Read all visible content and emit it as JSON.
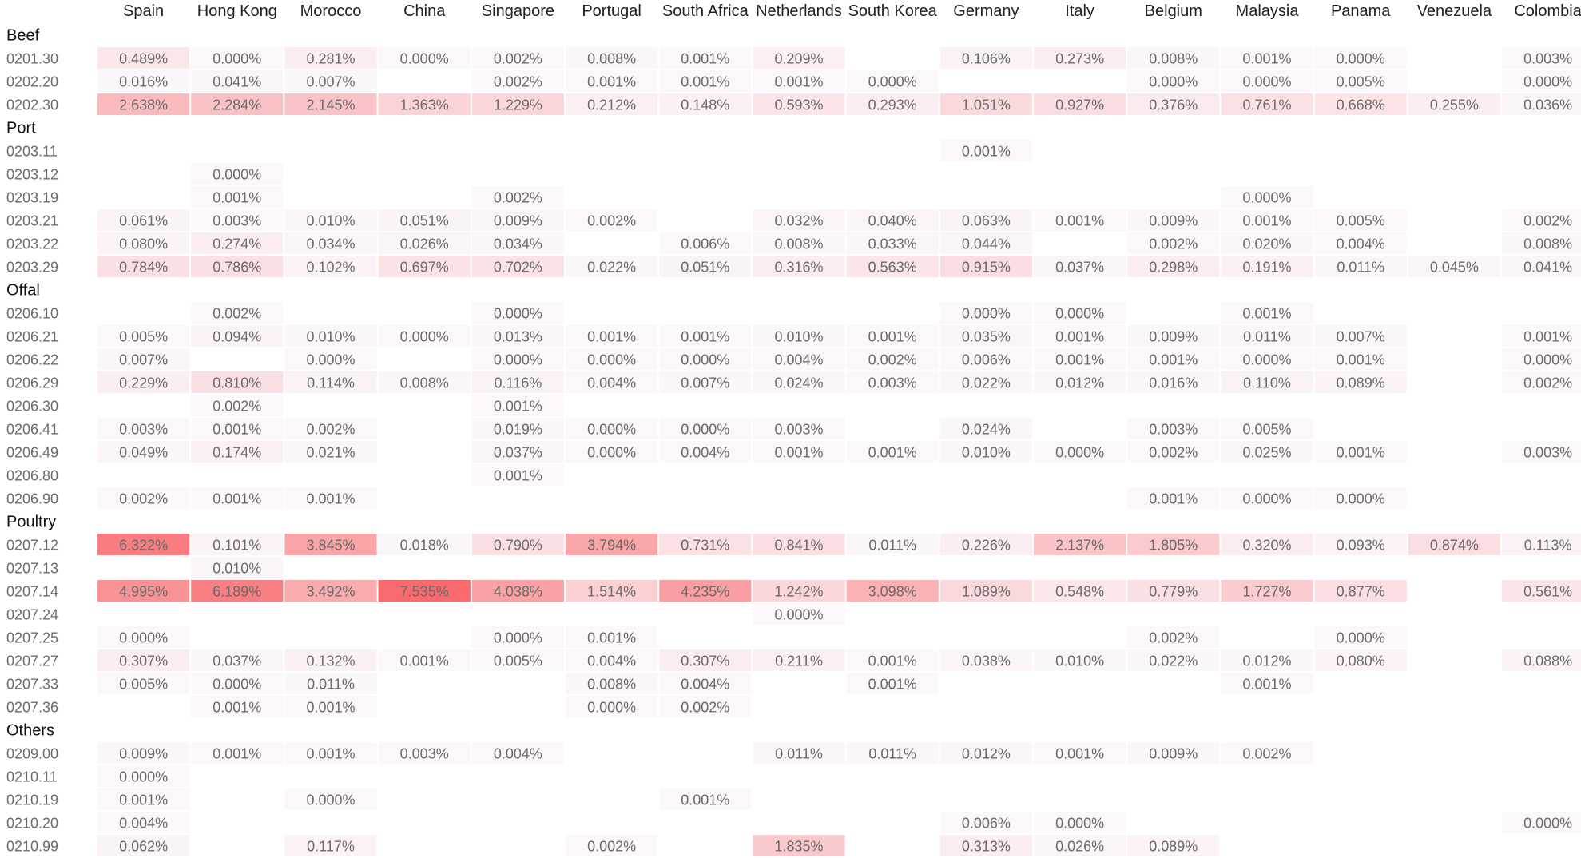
{
  "colors": {
    "low": "#fbf7fa",
    "high": "#f86a6e",
    "empty": "#ffffff",
    "text": "#6b6b6b",
    "header_text": "#222222"
  },
  "chart_data": {
    "type": "heatmap",
    "columns": [
      "Spain",
      "Hong Kong",
      "Morocco",
      "China",
      "Singapore",
      "Portugal",
      "South Africa",
      "Netherlands",
      "South Korea",
      "Germany",
      "Italy",
      "Belgium",
      "Malaysia",
      "Panama",
      "Venezuela",
      "Colombia"
    ],
    "value_format": "percent_3dp",
    "color_range": [
      0,
      7.535
    ],
    "groups": [
      {
        "name": "Beef",
        "rows": [
          {
            "label": "0201.30",
            "values": [
              0.489,
              0.0,
              0.281,
              0.0,
              0.002,
              0.008,
              0.001,
              0.209,
              null,
              0.106,
              0.273,
              0.008,
              0.001,
              0.0,
              null,
              0.003
            ]
          },
          {
            "label": "0202.20",
            "values": [
              0.016,
              0.041,
              0.007,
              null,
              0.002,
              0.001,
              0.001,
              0.001,
              0.0,
              null,
              null,
              0.0,
              0.0,
              0.005,
              null,
              0.0
            ]
          },
          {
            "label": "0202.30",
            "values": [
              2.638,
              2.284,
              2.145,
              1.363,
              1.229,
              0.212,
              0.148,
              0.593,
              0.293,
              1.051,
              0.927,
              0.376,
              0.761,
              0.668,
              0.255,
              0.036
            ]
          }
        ]
      },
      {
        "name": "Port",
        "rows": [
          {
            "label": "0203.11",
            "values": [
              null,
              null,
              null,
              null,
              null,
              null,
              null,
              null,
              null,
              0.001,
              null,
              null,
              null,
              null,
              null,
              null
            ]
          },
          {
            "label": "0203.12",
            "values": [
              null,
              0.0,
              null,
              null,
              null,
              null,
              null,
              null,
              null,
              null,
              null,
              null,
              null,
              null,
              null,
              null
            ]
          },
          {
            "label": "0203.19",
            "values": [
              null,
              0.001,
              null,
              null,
              0.002,
              null,
              null,
              null,
              null,
              null,
              null,
              null,
              0.0,
              null,
              null,
              null
            ]
          },
          {
            "label": "0203.21",
            "values": [
              0.061,
              0.003,
              0.01,
              0.051,
              0.009,
              0.002,
              null,
              0.032,
              0.04,
              0.063,
              0.001,
              0.009,
              0.001,
              0.005,
              null,
              0.002
            ]
          },
          {
            "label": "0203.22",
            "values": [
              0.08,
              0.274,
              0.034,
              0.026,
              0.034,
              null,
              0.006,
              0.008,
              0.033,
              0.044,
              null,
              0.002,
              0.02,
              0.004,
              null,
              0.008
            ]
          },
          {
            "label": "0203.29",
            "values": [
              0.784,
              0.786,
              0.102,
              0.697,
              0.702,
              0.022,
              0.051,
              0.316,
              0.563,
              0.915,
              0.037,
              0.298,
              0.191,
              0.011,
              0.045,
              0.041
            ]
          }
        ]
      },
      {
        "name": "Offal",
        "rows": [
          {
            "label": "0206.10",
            "values": [
              null,
              0.002,
              null,
              null,
              0.0,
              null,
              null,
              null,
              null,
              0.0,
              0.0,
              null,
              0.001,
              null,
              null,
              null
            ]
          },
          {
            "label": "0206.21",
            "values": [
              0.005,
              0.094,
              0.01,
              0.0,
              0.013,
              0.001,
              0.001,
              0.01,
              0.001,
              0.035,
              0.001,
              0.009,
              0.011,
              0.007,
              null,
              0.001
            ]
          },
          {
            "label": "0206.22",
            "values": [
              0.007,
              null,
              0.0,
              null,
              0.0,
              0.0,
              0.0,
              0.004,
              0.002,
              0.006,
              0.001,
              0.001,
              0.0,
              0.001,
              null,
              0.0
            ]
          },
          {
            "label": "0206.29",
            "values": [
              0.229,
              0.81,
              0.114,
              0.008,
              0.116,
              0.004,
              0.007,
              0.024,
              0.003,
              0.022,
              0.012,
              0.016,
              0.11,
              0.089,
              null,
              0.002
            ]
          },
          {
            "label": "0206.30",
            "values": [
              null,
              0.002,
              null,
              null,
              0.001,
              null,
              null,
              null,
              null,
              null,
              null,
              null,
              null,
              null,
              null,
              null
            ]
          },
          {
            "label": "0206.41",
            "values": [
              0.003,
              0.001,
              0.002,
              null,
              0.019,
              0.0,
              0.0,
              0.003,
              null,
              0.024,
              null,
              0.003,
              0.005,
              null,
              null,
              null
            ]
          },
          {
            "label": "0206.49",
            "values": [
              0.049,
              0.174,
              0.021,
              null,
              0.037,
              0.0,
              0.004,
              0.001,
              0.001,
              0.01,
              0.0,
              0.002,
              0.025,
              0.001,
              null,
              0.003
            ]
          },
          {
            "label": "0206.80",
            "values": [
              null,
              null,
              null,
              null,
              0.001,
              null,
              null,
              null,
              null,
              null,
              null,
              null,
              null,
              null,
              null,
              null
            ]
          },
          {
            "label": "0206.90",
            "values": [
              0.002,
              0.001,
              0.001,
              null,
              null,
              null,
              null,
              null,
              null,
              null,
              null,
              0.001,
              0.0,
              0.0,
              null,
              null
            ]
          }
        ]
      },
      {
        "name": "Poultry",
        "rows": [
          {
            "label": "0207.12",
            "values": [
              6.322,
              0.101,
              3.845,
              0.018,
              0.79,
              3.794,
              0.731,
              0.841,
              0.011,
              0.226,
              2.137,
              1.805,
              0.32,
              0.093,
              0.874,
              0.113
            ]
          },
          {
            "label": "0207.13",
            "values": [
              null,
              0.01,
              null,
              null,
              null,
              null,
              null,
              null,
              null,
              null,
              null,
              null,
              null,
              null,
              null,
              null
            ]
          },
          {
            "label": "0207.14",
            "values": [
              4.995,
              6.189,
              3.492,
              7.535,
              4.038,
              1.514,
              4.235,
              1.242,
              3.098,
              1.089,
              0.548,
              0.779,
              1.727,
              0.877,
              null,
              0.561
            ]
          },
          {
            "label": "0207.24",
            "values": [
              null,
              null,
              null,
              null,
              null,
              null,
              null,
              0.0,
              null,
              null,
              null,
              null,
              null,
              null,
              null,
              null
            ]
          },
          {
            "label": "0207.25",
            "values": [
              0.0,
              null,
              null,
              null,
              0.0,
              0.001,
              null,
              null,
              null,
              null,
              null,
              0.002,
              null,
              0.0,
              null,
              null
            ]
          },
          {
            "label": "0207.27",
            "values": [
              0.307,
              0.037,
              0.132,
              0.001,
              0.005,
              0.004,
              0.307,
              0.211,
              0.001,
              0.038,
              0.01,
              0.022,
              0.012,
              0.08,
              null,
              0.088
            ]
          },
          {
            "label": "0207.33",
            "values": [
              0.005,
              0.0,
              0.011,
              null,
              null,
              0.008,
              0.004,
              null,
              0.001,
              null,
              null,
              null,
              0.001,
              null,
              null,
              null
            ]
          },
          {
            "label": "0207.36",
            "values": [
              null,
              0.001,
              0.001,
              null,
              null,
              0.0,
              0.002,
              null,
              null,
              null,
              null,
              null,
              null,
              null,
              null,
              null
            ]
          }
        ]
      },
      {
        "name": "Others",
        "rows": [
          {
            "label": "0209.00",
            "values": [
              0.009,
              0.001,
              0.001,
              0.003,
              0.004,
              null,
              null,
              0.011,
              0.011,
              0.012,
              0.001,
              0.009,
              0.002,
              null,
              null,
              null
            ]
          },
          {
            "label": "0210.11",
            "values": [
              0.0,
              null,
              null,
              null,
              null,
              null,
              null,
              null,
              null,
              null,
              null,
              null,
              null,
              null,
              null,
              null
            ]
          },
          {
            "label": "0210.19",
            "values": [
              0.001,
              null,
              0.0,
              null,
              null,
              null,
              0.001,
              null,
              null,
              null,
              null,
              null,
              null,
              null,
              null,
              null
            ]
          },
          {
            "label": "0210.20",
            "values": [
              0.004,
              null,
              null,
              null,
              null,
              null,
              null,
              null,
              null,
              0.006,
              0.0,
              null,
              null,
              null,
              null,
              0.0
            ]
          },
          {
            "label": "0210.99",
            "values": [
              0.062,
              null,
              0.117,
              null,
              null,
              0.002,
              null,
              1.835,
              null,
              0.313,
              0.026,
              0.089,
              null,
              null,
              null,
              null
            ]
          }
        ]
      }
    ]
  }
}
